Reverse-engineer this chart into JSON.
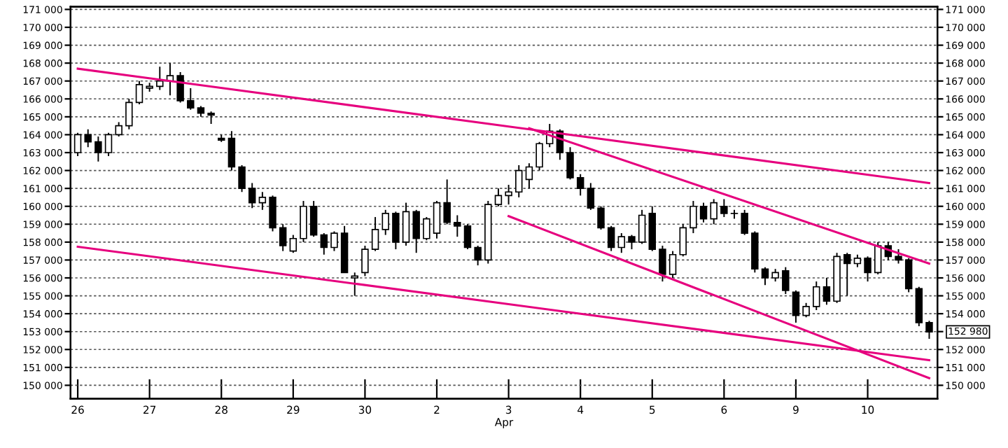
{
  "chart_data": {
    "type": "candlestick",
    "xlabel": "Apr",
    "categories": [
      "26",
      null,
      null,
      null,
      null,
      null,
      null,
      "27",
      null,
      null,
      null,
      null,
      null,
      null,
      "28",
      null,
      null,
      null,
      null,
      null,
      null,
      "29",
      null,
      null,
      null,
      null,
      null,
      null,
      "30",
      null,
      null,
      null,
      null,
      null,
      null,
      "2",
      null,
      null,
      null,
      null,
      null,
      null,
      "3",
      null,
      null,
      null,
      null,
      null,
      null,
      "4",
      null,
      null,
      null,
      null,
      null,
      null,
      "5",
      null,
      null,
      null,
      null,
      null,
      null,
      "6",
      null,
      null,
      null,
      null,
      null,
      null,
      "9",
      null,
      null,
      null,
      null,
      null,
      null,
      "10",
      null,
      null,
      null,
      null,
      null,
      null
    ],
    "ohlc": [
      [
        163000,
        164100,
        162800,
        164000
      ],
      [
        164000,
        164300,
        163300,
        163600
      ],
      [
        163600,
        163900,
        162500,
        163000
      ],
      [
        163000,
        164100,
        162800,
        164000
      ],
      [
        164000,
        164700,
        163900,
        164500
      ],
      [
        164500,
        166000,
        164300,
        165800
      ],
      [
        165800,
        167000,
        165700,
        166800
      ],
      [
        166600,
        166900,
        166400,
        166700
      ],
      [
        166700,
        167800,
        166500,
        167000
      ],
      [
        167000,
        168000,
        166200,
        167300
      ],
      [
        167300,
        167500,
        165800,
        165900
      ],
      [
        165900,
        166600,
        165400,
        165500
      ],
      [
        165500,
        165600,
        165000,
        165200
      ],
      [
        165200,
        165300,
        164600,
        165100
      ],
      [
        163800,
        164000,
        163600,
        163700
      ],
      [
        163800,
        164200,
        162000,
        162200
      ],
      [
        162200,
        162300,
        160800,
        161000
      ],
      [
        161000,
        161300,
        159900,
        160200
      ],
      [
        160200,
        160800,
        159800,
        160500
      ],
      [
        160500,
        160600,
        158600,
        158800
      ],
      [
        158800,
        159000,
        157500,
        157800
      ],
      [
        157500,
        158400,
        157400,
        158200
      ],
      [
        158200,
        160300,
        158000,
        160000
      ],
      [
        160000,
        160300,
        158300,
        158400
      ],
      [
        158400,
        158500,
        157300,
        157700
      ],
      [
        157700,
        158600,
        157500,
        158500
      ],
      [
        158500,
        158900,
        156300,
        156300
      ],
      [
        156000,
        156300,
        155000,
        156100
      ],
      [
        156300,
        157800,
        156100,
        157600
      ],
      [
        157600,
        159400,
        157500,
        158700
      ],
      [
        158700,
        159800,
        158400,
        159600
      ],
      [
        159600,
        159700,
        157600,
        158000
      ],
      [
        158000,
        160200,
        157800,
        159700
      ],
      [
        159700,
        159800,
        157400,
        158200
      ],
      [
        158200,
        159400,
        158100,
        159300
      ],
      [
        158500,
        160300,
        158200,
        160200
      ],
      [
        160200,
        161500,
        159000,
        159100
      ],
      [
        159100,
        159500,
        158300,
        158900
      ],
      [
        158900,
        159000,
        157600,
        157700
      ],
      [
        157700,
        157800,
        156700,
        157000
      ],
      [
        157000,
        160300,
        156800,
        160100
      ],
      [
        160100,
        161000,
        160000,
        160600
      ],
      [
        160600,
        161200,
        160100,
        160800
      ],
      [
        160800,
        162300,
        160500,
        162000
      ],
      [
        161500,
        162400,
        161000,
        162200
      ],
      [
        162200,
        163600,
        162000,
        163500
      ],
      [
        163500,
        164600,
        163300,
        164200
      ],
      [
        164200,
        164300,
        162600,
        163000
      ],
      [
        163000,
        163300,
        161500,
        161600
      ],
      [
        161600,
        161800,
        160600,
        161000
      ],
      [
        161000,
        161300,
        159800,
        159900
      ],
      [
        159900,
        160000,
        158700,
        158800
      ],
      [
        158800,
        158900,
        157500,
        157700
      ],
      [
        157700,
        158500,
        157400,
        158300
      ],
      [
        158300,
        158400,
        157600,
        158000
      ],
      [
        158000,
        159800,
        157900,
        159500
      ],
      [
        159600,
        160000,
        157500,
        157600
      ],
      [
        157600,
        157800,
        155800,
        156200
      ],
      [
        156200,
        157500,
        156000,
        157300
      ],
      [
        157300,
        159000,
        157200,
        158800
      ],
      [
        158800,
        160300,
        158500,
        160000
      ],
      [
        160000,
        160200,
        159100,
        159300
      ],
      [
        159300,
        160400,
        159000,
        160200
      ],
      [
        160000,
        160400,
        159400,
        159600
      ],
      [
        159600,
        159800,
        159300,
        159600
      ],
      [
        159600,
        159800,
        158400,
        158500
      ],
      [
        158500,
        158600,
        156300,
        156500
      ],
      [
        156500,
        156600,
        155600,
        156000
      ],
      [
        156000,
        156500,
        155800,
        156300
      ],
      [
        156400,
        156600,
        155100,
        155300
      ],
      [
        155200,
        155300,
        153500,
        153900
      ],
      [
        153900,
        154600,
        153800,
        154400
      ],
      [
        154400,
        155800,
        154200,
        155500
      ],
      [
        155500,
        156000,
        154500,
        154700
      ],
      [
        154700,
        157400,
        154600,
        157200
      ],
      [
        157300,
        157400,
        155000,
        156800
      ],
      [
        156800,
        157300,
        156600,
        157100
      ],
      [
        157100,
        157200,
        155800,
        156300
      ],
      [
        156300,
        158000,
        156200,
        157800
      ],
      [
        157800,
        158000,
        157000,
        157200
      ],
      [
        157200,
        157600,
        156800,
        157000
      ],
      [
        157000,
        157100,
        155200,
        155400
      ],
      [
        155400,
        155500,
        153300,
        153500
      ],
      [
        153500,
        153600,
        152600,
        152980
      ]
    ],
    "series": [
      {
        "type": "line",
        "color": "#e6007e",
        "values": [
          167690,
          null,
          null,
          null,
          null,
          null,
          null,
          null,
          null,
          null,
          null,
          null,
          null,
          null,
          null,
          null,
          null,
          null,
          null,
          null,
          null,
          null,
          null,
          null,
          null,
          null,
          null,
          null,
          null,
          null,
          null,
          null,
          null,
          null,
          null,
          null,
          null,
          null,
          null,
          null,
          null,
          null,
          null,
          null,
          null,
          null,
          null,
          null,
          null,
          null,
          null,
          null,
          null,
          null,
          null,
          null,
          null,
          null,
          null,
          null,
          null,
          null,
          null,
          null,
          null,
          null,
          null,
          null,
          null,
          null,
          null,
          null,
          null,
          null,
          null,
          null,
          null,
          null,
          null,
          null,
          null,
          null,
          null,
          161300
        ]
      },
      {
        "type": "line",
        "color": "#e6007e",
        "values": [
          null,
          null,
          null,
          null,
          null,
          null,
          null,
          null,
          null,
          null,
          null,
          null,
          null,
          null,
          null,
          null,
          null,
          null,
          null,
          null,
          null,
          null,
          null,
          null,
          null,
          null,
          null,
          null,
          null,
          null,
          null,
          null,
          null,
          null,
          null,
          null,
          null,
          null,
          null,
          null,
          null,
          null,
          null,
          null,
          164360,
          null,
          null,
          null,
          null,
          null,
          null,
          null,
          null,
          null,
          null,
          null,
          null,
          null,
          null,
          null,
          null,
          null,
          null,
          null,
          null,
          null,
          null,
          null,
          null,
          null,
          null,
          null,
          null,
          null,
          null,
          null,
          null,
          null,
          null,
          null,
          null,
          null,
          null,
          156800
        ]
      },
      {
        "type": "line",
        "color": "#e6007e",
        "values": [
          157740,
          null,
          null,
          null,
          null,
          null,
          null,
          null,
          null,
          null,
          null,
          null,
          null,
          null,
          null,
          null,
          null,
          null,
          null,
          null,
          null,
          null,
          null,
          null,
          null,
          null,
          null,
          null,
          null,
          null,
          null,
          null,
          null,
          null,
          null,
          null,
          null,
          null,
          null,
          null,
          null,
          null,
          null,
          null,
          null,
          null,
          null,
          null,
          null,
          null,
          null,
          null,
          null,
          null,
          null,
          null,
          null,
          null,
          null,
          null,
          null,
          null,
          null,
          null,
          null,
          null,
          null,
          null,
          null,
          null,
          null,
          null,
          null,
          null,
          null,
          null,
          null,
          null,
          null,
          null,
          null,
          null,
          null,
          151400
        ]
      },
      {
        "type": "line",
        "color": "#e6007e",
        "values": [
          null,
          null,
          null,
          null,
          null,
          null,
          null,
          null,
          null,
          null,
          null,
          null,
          null,
          null,
          null,
          null,
          null,
          null,
          null,
          null,
          null,
          null,
          null,
          null,
          null,
          null,
          null,
          null,
          null,
          null,
          null,
          null,
          null,
          null,
          null,
          null,
          null,
          null,
          null,
          null,
          null,
          null,
          159450,
          null,
          null,
          null,
          null,
          null,
          null,
          null,
          null,
          null,
          null,
          null,
          null,
          null,
          null,
          null,
          null,
          null,
          null,
          null,
          null,
          null,
          null,
          null,
          null,
          null,
          null,
          null,
          null,
          null,
          null,
          null,
          null,
          null,
          null,
          null,
          null,
          null,
          null,
          null,
          null,
          150400
        ]
      }
    ],
    "annotations": [
      "152 980"
    ],
    "ylim": [
      149250,
      171150
    ],
    "yticks": [
      {
        "value": 150000,
        "label": "150 000"
      },
      {
        "value": 151000,
        "label": "151 000"
      },
      {
        "value": 152000,
        "label": "152 000"
      },
      {
        "value": 153000,
        "label": "153 000"
      },
      {
        "value": 154000,
        "label": "154 000"
      },
      {
        "value": 155000,
        "label": "155 000"
      },
      {
        "value": 156000,
        "label": "156 000"
      },
      {
        "value": 157000,
        "label": "157 000"
      },
      {
        "value": 158000,
        "label": "158 000"
      },
      {
        "value": 159000,
        "label": "159 000"
      },
      {
        "value": 160000,
        "label": "160 000"
      },
      {
        "value": 161000,
        "label": "161 000"
      },
      {
        "value": 162000,
        "label": "162 000"
      },
      {
        "value": 163000,
        "label": "163 000"
      },
      {
        "value": 164000,
        "label": "164 000"
      },
      {
        "value": 165000,
        "label": "165 000"
      },
      {
        "value": 166000,
        "label": "166 000"
      },
      {
        "value": 167000,
        "label": "167 000"
      },
      {
        "value": 168000,
        "label": "168 000"
      },
      {
        "value": 169000,
        "label": "169 000"
      },
      {
        "value": 170000,
        "label": "170 000"
      },
      {
        "value": 171000,
        "label": "171 000"
      }
    ],
    "y2lim": [
      149250,
      171150
    ],
    "y2ticks": [
      {
        "value": 150000,
        "label": "150 000"
      },
      {
        "value": 151000,
        "label": "151 000"
      },
      {
        "value": 152000,
        "label": "152 000"
      },
      {
        "value": 153000,
        "label": null
      },
      {
        "value": 154000,
        "label": "154 000"
      },
      {
        "value": 155000,
        "label": "155 000"
      },
      {
        "value": 156000,
        "label": "156 000"
      },
      {
        "value": 157000,
        "label": "157 000"
      },
      {
        "value": 158000,
        "label": "158 000"
      },
      {
        "value": 159000,
        "label": "159 000"
      },
      {
        "value": 160000,
        "label": "160 000"
      },
      {
        "value": 161000,
        "label": "161 000"
      },
      {
        "value": 162000,
        "label": "162 000"
      },
      {
        "value": 163000,
        "label": "163 000"
      },
      {
        "value": 164000,
        "label": "164 000"
      },
      {
        "value": 165000,
        "label": "165 000"
      },
      {
        "value": 166000,
        "label": "166 000"
      },
      {
        "value": 167000,
        "label": "167 000"
      },
      {
        "value": 168000,
        "label": "168 000"
      },
      {
        "value": 169000,
        "label": "169 000"
      },
      {
        "value": 170000,
        "label": "170 000"
      },
      {
        "value": 171000,
        "label": "171 000"
      }
    ],
    "grid": "y"
  }
}
